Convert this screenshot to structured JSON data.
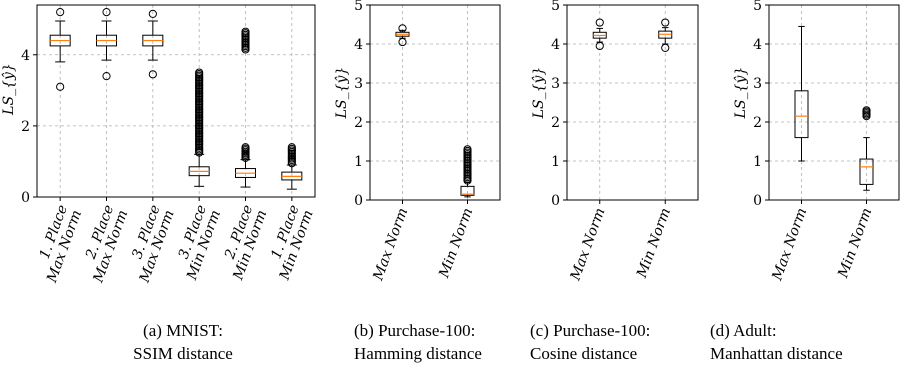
{
  "style": {
    "median_color": "#ff7f0e",
    "box_color": "#000000",
    "grid_color": "#b0b0b0"
  },
  "chart_data": [
    {
      "type": "box",
      "ylabel": "LS_{ŷ}",
      "ylim": [
        0,
        5.4
      ],
      "yticks": [
        0,
        2,
        4
      ],
      "grid": true,
      "categories": [
        [
          "1. Place",
          "Max Norm"
        ],
        [
          "2. Place",
          "Max Norm"
        ],
        [
          "3. Place",
          "Max Norm"
        ],
        [
          "3. Place",
          "Min Norm"
        ],
        [
          "2. Place",
          "Min Norm"
        ],
        [
          "1. Place",
          "Min Norm"
        ]
      ],
      "boxes": [
        {
          "whislo": 3.8,
          "q1": 4.25,
          "med": 4.4,
          "q3": 4.55,
          "whishi": 4.95,
          "fliers": [
            3.1,
            5.2
          ]
        },
        {
          "whislo": 3.85,
          "q1": 4.25,
          "med": 4.4,
          "q3": 4.55,
          "whishi": 4.95,
          "fliers": [
            3.4,
            5.2
          ]
        },
        {
          "whislo": 3.85,
          "q1": 4.25,
          "med": 4.4,
          "q3": 4.55,
          "whishi": 4.95,
          "fliers": [
            3.45,
            5.15
          ]
        },
        {
          "whislo": 0.3,
          "q1": 0.6,
          "med": 0.72,
          "q3": 0.85,
          "whishi": 1.2,
          "fliers": [
            1.25,
            3.5
          ]
        },
        {
          "whislo": 0.28,
          "q1": 0.55,
          "med": 0.67,
          "q3": 0.8,
          "whishi": 1.05,
          "fliers": [
            1.1,
            1.4,
            4.15,
            4.65
          ]
        },
        {
          "whislo": 0.22,
          "q1": 0.48,
          "med": 0.58,
          "q3": 0.7,
          "whishi": 0.9,
          "fliers": [
            0.95,
            1.4
          ]
        }
      ],
      "caption": [
        "(a) MNIST:",
        "SSIM distance"
      ]
    },
    {
      "type": "box",
      "ylabel": "LS_{ŷ}",
      "ylim": [
        0,
        5
      ],
      "yticks": [
        0,
        1,
        2,
        3,
        4,
        5
      ],
      "grid": true,
      "categories": [
        [
          "Max Norm"
        ],
        [
          "Min Norm"
        ]
      ],
      "boxes": [
        {
          "whislo": 4.15,
          "q1": 4.2,
          "med": 4.25,
          "q3": 4.3,
          "whishi": 4.35,
          "fliers": [
            4.05,
            4.4
          ]
        },
        {
          "whislo": 0.08,
          "q1": 0.12,
          "med": 0.15,
          "q3": 0.35,
          "whishi": 0.45,
          "fliers": [
            0.5,
            1.3
          ]
        }
      ],
      "caption": [
        "(b)    Purchase-100:",
        "Hamming distance"
      ]
    },
    {
      "type": "box",
      "ylabel": "LS_{ŷ}",
      "ylim": [
        0,
        5
      ],
      "yticks": [
        0,
        1,
        2,
        3,
        4,
        5
      ],
      "grid": true,
      "categories": [
        [
          "Max Norm"
        ],
        [
          "Min Norm"
        ]
      ],
      "boxes": [
        {
          "whislo": 4.05,
          "q1": 4.15,
          "med": 4.22,
          "q3": 4.3,
          "whishi": 4.4,
          "fliers": [
            3.95,
            4.55
          ]
        },
        {
          "whislo": 4.0,
          "q1": 4.15,
          "med": 4.25,
          "q3": 4.33,
          "whishi": 4.42,
          "fliers": [
            3.9,
            4.55
          ]
        }
      ],
      "caption": [
        "(c)    Purchase-100:",
        "Cosine distance"
      ]
    },
    {
      "type": "box",
      "ylabel": "LS_{ŷ}",
      "ylim": [
        0,
        5
      ],
      "yticks": [
        0,
        1,
        2,
        3,
        4,
        5
      ],
      "grid": true,
      "categories": [
        [
          "Max Norm"
        ],
        [
          "Min Norm"
        ]
      ],
      "boxes": [
        {
          "whislo": 1.0,
          "q1": 1.6,
          "med": 2.15,
          "q3": 2.8,
          "whishi": 4.45,
          "fliers": []
        },
        {
          "whislo": 0.25,
          "q1": 0.4,
          "med": 0.85,
          "q3": 1.05,
          "whishi": 1.6,
          "fliers": [
            2.15,
            2.3
          ]
        }
      ],
      "caption": [
        "(d) Adult:",
        "Manhattan distance"
      ]
    }
  ]
}
